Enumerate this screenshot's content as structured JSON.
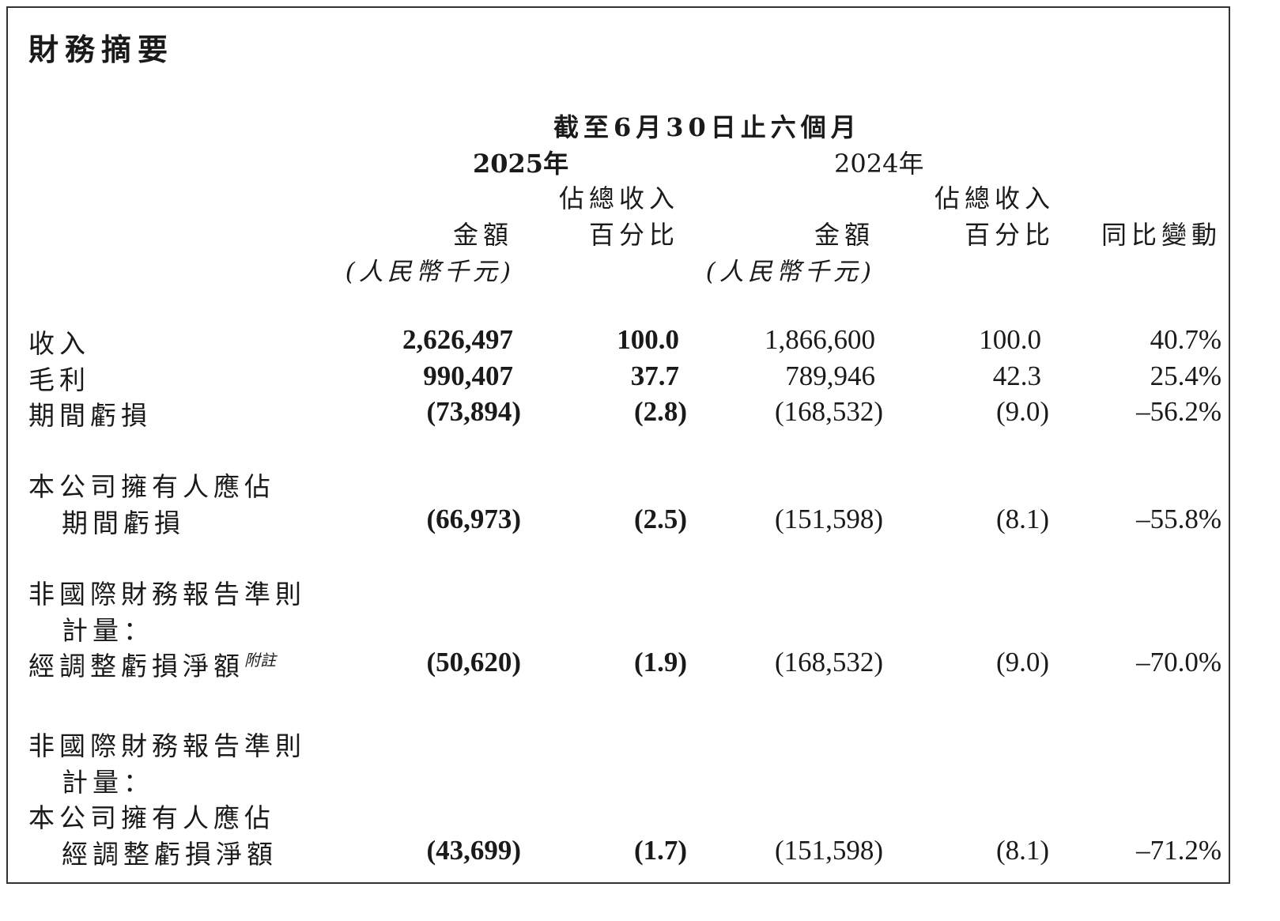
{
  "title": "財務摘要",
  "header": {
    "period": "截至6月30日止六個月",
    "year_2025": "2025年",
    "year_2024": "2024年",
    "pct_line1": "佔總收入",
    "pct_line2": "百分比",
    "amount": "金額",
    "unit": "(人民幣千元)",
    "yoy": "同比變動"
  },
  "rows": {
    "revenue": {
      "label": "收入",
      "a2025": "2,626,497",
      "p2025": "100.0",
      "a2024": "1,866,600",
      "p2024": "100.0",
      "yoy": "40.7%"
    },
    "gross_profit": {
      "label": "毛利",
      "a2025": "990,407",
      "p2025": "37.7",
      "a2024": "789,946",
      "p2024": "42.3",
      "yoy": "25.4%"
    },
    "period_loss": {
      "label": "期間虧損",
      "a2025": "(73,894)",
      "p2025": "(2.8)",
      "a2024": "(168,532)",
      "p2024": "(9.0)",
      "yoy": "–56.2%"
    },
    "owner_loss": {
      "label_line1": "本公司擁有人應佔",
      "label_line2": "期間虧損",
      "a2025": "(66,973)",
      "p2025": "(2.5)",
      "a2024": "(151,598)",
      "p2024": "(8.1)",
      "yoy": "–55.8%"
    },
    "adj_net_loss": {
      "label_line1": "非國際財務報告準則",
      "label_line2": "計量：",
      "label_line3": "經調整虧損淨額",
      "note": "附註",
      "a2025": "(50,620)",
      "p2025": "(1.9)",
      "a2024": "(168,532)",
      "p2024": "(9.0)",
      "yoy": "–70.0%"
    },
    "owner_adj_net_loss": {
      "label_line1": "非國際財務報告準則",
      "label_line2": "計量：",
      "label_line3": "本公司擁有人應佔",
      "label_line4": "經調整虧損淨額",
      "a2025": "(43,699)",
      "p2025": "(1.7)",
      "a2024": "(151,598)",
      "p2024": "(8.1)",
      "yoy": "–71.2%"
    }
  }
}
